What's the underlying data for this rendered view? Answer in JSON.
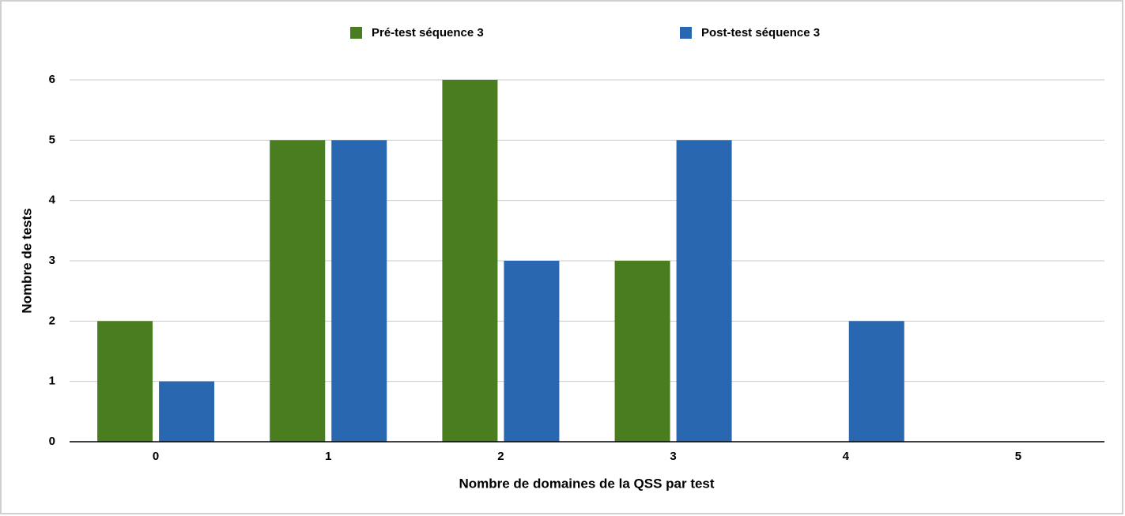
{
  "chart_data": {
    "type": "bar",
    "x_label": "Nombre de domaines de la QSS par test",
    "y_label": "Nombre de tests",
    "categories": [
      "0",
      "1",
      "2",
      "3",
      "4",
      "5"
    ],
    "series": [
      {
        "name": "Pré-test séquence 3",
        "color": "#4a7d1f",
        "values": [
          2,
          5,
          6,
          3,
          0,
          0
        ]
      },
      {
        "name": "Post-test séquence 3",
        "color": "#2a67b1",
        "values": [
          1,
          5,
          3,
          5,
          2,
          0
        ]
      }
    ],
    "ylim": [
      0,
      6
    ],
    "yticks": [
      0,
      1,
      2,
      3,
      4,
      5,
      6
    ],
    "grid": true,
    "legend": "top"
  }
}
